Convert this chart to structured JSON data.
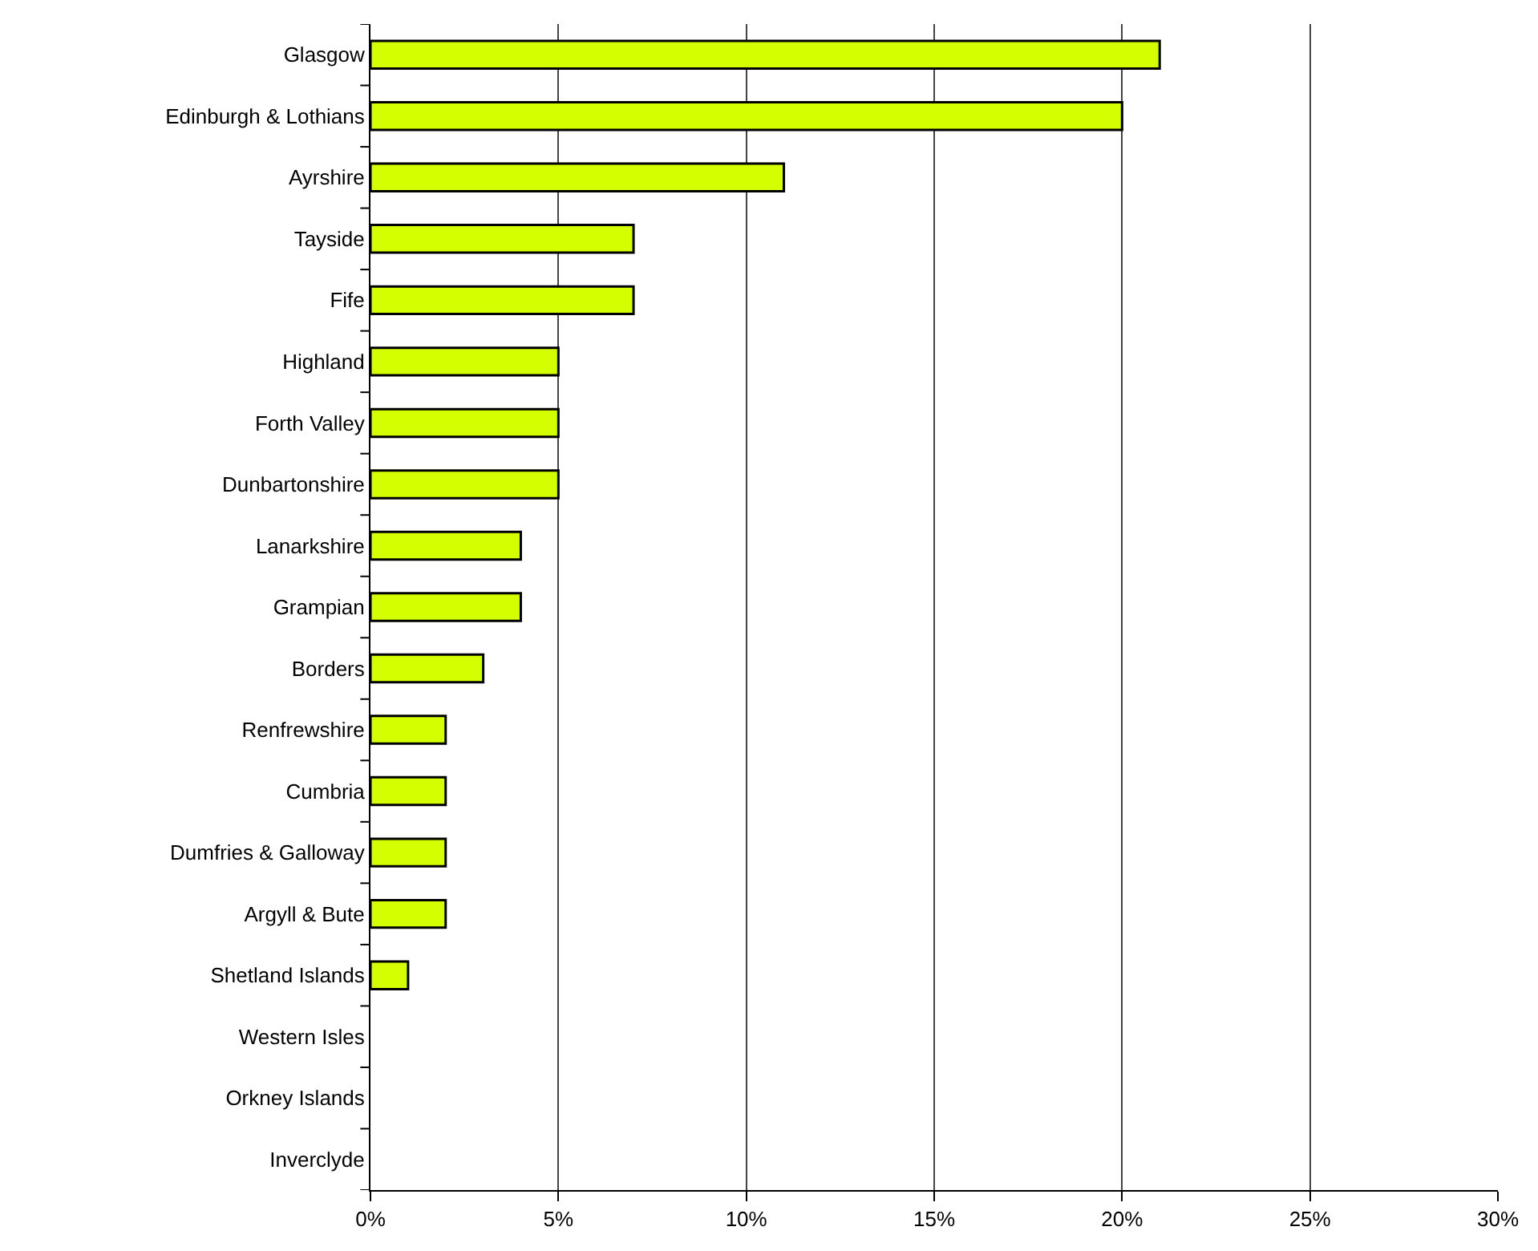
{
  "chart_data": {
    "type": "bar",
    "orientation": "horizontal",
    "categories": [
      "Glasgow",
      "Edinburgh & Lothians",
      "Ayrshire",
      "Tayside",
      "Fife",
      "Highland",
      "Forth Valley",
      "Dunbartonshire",
      "Lanarkshire",
      "Grampian",
      "Borders",
      "Renfrewshire",
      "Cumbria",
      "Dumfries & Galloway",
      "Argyll & Bute",
      "Shetland Islands",
      "Western Isles",
      "Orkney Islands",
      "Inverclyde"
    ],
    "values": [
      21,
      20,
      11,
      7,
      7,
      5,
      5,
      5,
      4,
      4,
      3,
      2,
      2,
      2,
      2,
      1,
      0,
      0,
      0
    ],
    "color": "#d4ff00",
    "xlim": [
      0,
      30
    ],
    "xticks": [
      {
        "value": 0,
        "label": "0%"
      },
      {
        "value": 5,
        "label": "5%"
      },
      {
        "value": 10,
        "label": "10%"
      },
      {
        "value": 15,
        "label": "15%"
      },
      {
        "value": 20,
        "label": "20%"
      },
      {
        "value": 25,
        "label": "25%"
      },
      {
        "value": 30,
        "label": "30%"
      }
    ],
    "grid": "x"
  }
}
